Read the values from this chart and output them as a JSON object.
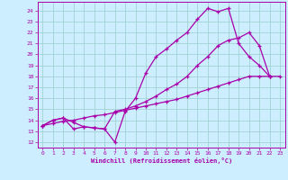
{
  "xlabel": "Windchill (Refroidissement éolien,°C)",
  "bg_color": "#cceeff",
  "grid_color": "#99cccc",
  "line_color": "#aa00aa",
  "xlim": [
    -0.5,
    23.5
  ],
  "ylim": [
    11.5,
    24.8
  ],
  "yticks": [
    12,
    13,
    14,
    15,
    16,
    17,
    18,
    19,
    20,
    21,
    22,
    23,
    24
  ],
  "xticks": [
    0,
    1,
    2,
    3,
    4,
    5,
    6,
    7,
    8,
    9,
    10,
    11,
    12,
    13,
    14,
    15,
    16,
    17,
    18,
    19,
    20,
    21,
    22,
    23
  ],
  "line1_x": [
    0,
    1,
    2,
    3,
    4,
    5,
    6,
    7,
    8,
    9,
    10,
    11,
    12,
    13,
    14,
    15,
    16,
    17,
    18,
    19,
    20,
    21,
    22
  ],
  "line1_y": [
    13.5,
    14.0,
    14.2,
    13.2,
    13.4,
    13.3,
    13.2,
    12.0,
    14.8,
    16.0,
    18.3,
    19.8,
    20.5,
    21.3,
    22.0,
    23.2,
    24.2,
    23.9,
    24.2,
    21.0,
    19.8,
    19.0,
    18.0
  ],
  "line2_x": [
    0,
    1,
    2,
    3,
    4,
    5,
    6,
    7,
    8,
    9,
    10,
    11,
    12,
    13,
    14,
    15,
    16,
    17,
    18,
    19,
    20,
    21,
    22
  ],
  "line2_y": [
    13.5,
    14.0,
    14.2,
    13.8,
    13.4,
    13.3,
    13.2,
    14.8,
    15.0,
    15.3,
    15.7,
    16.2,
    16.8,
    17.3,
    18.0,
    19.0,
    19.8,
    20.8,
    21.3,
    21.5,
    22.0,
    20.8,
    18.0
  ],
  "line3_x": [
    0,
    1,
    2,
    3,
    4,
    5,
    6,
    7,
    8,
    9,
    10,
    11,
    12,
    13,
    14,
    15,
    16,
    17,
    18,
    19,
    20,
    21,
    22,
    23
  ],
  "line3_y": [
    13.5,
    13.7,
    13.9,
    14.0,
    14.2,
    14.4,
    14.5,
    14.7,
    14.9,
    15.1,
    15.3,
    15.5,
    15.7,
    15.9,
    16.2,
    16.5,
    16.8,
    17.1,
    17.4,
    17.7,
    18.0,
    18.0,
    18.0,
    18.0
  ]
}
